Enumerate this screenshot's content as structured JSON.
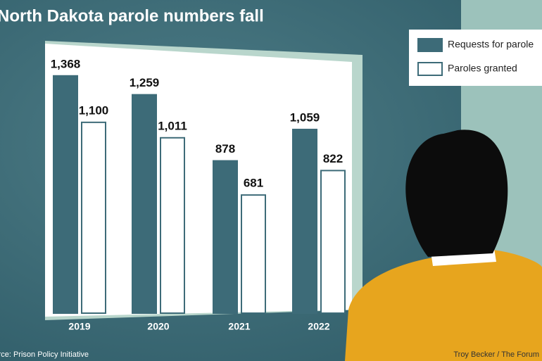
{
  "chart_data": {
    "type": "bar",
    "title": "North Dakota parole numbers fall",
    "categories": [
      "2019",
      "2020",
      "2021",
      "2022"
    ],
    "series": [
      {
        "name": "Requests for parole",
        "color": "#3d6b78",
        "values": [
          1368,
          1259,
          878,
          1059
        ],
        "value_labels": [
          "1,368",
          "1,259",
          "878",
          "1,059"
        ]
      },
      {
        "name": "Paroles granted",
        "color": "#ffffff",
        "values": [
          1100,
          1011,
          681,
          822
        ],
        "value_labels": [
          "1,100",
          "1,011",
          "681",
          "822"
        ]
      }
    ],
    "source": "Source: Prison Policy Initiative",
    "credit": "Troy Becker / The Forum"
  }
}
